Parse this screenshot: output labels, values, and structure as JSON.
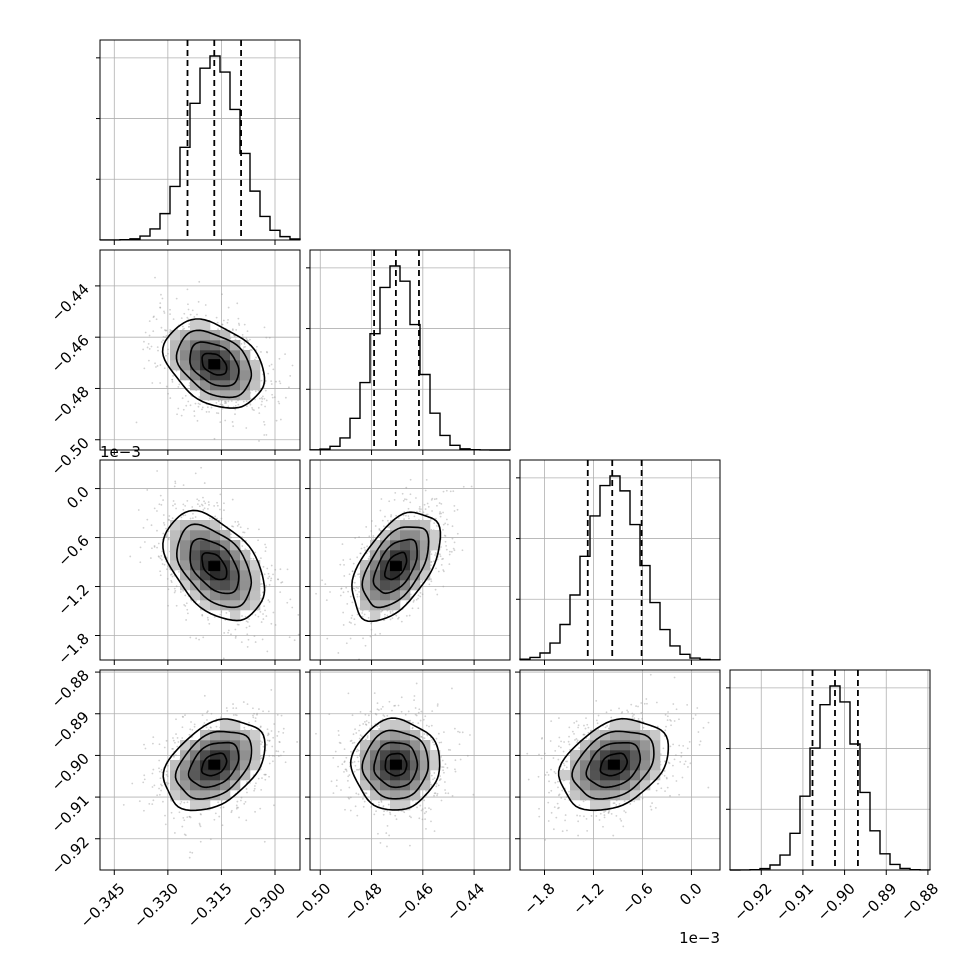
{
  "chart_data": {
    "type": "corner",
    "grid": true,
    "parameters": [
      {
        "range": [
          -0.349,
          -0.293
        ],
        "ticks": [
          -0.345,
          -0.33,
          -0.315,
          -0.3
        ],
        "tick_labels": [
          "−0.345",
          "−0.330",
          "−0.315",
          "−0.300"
        ],
        "offset_text": "",
        "quantiles": [
          -0.3245,
          -0.317,
          -0.3095
        ],
        "mean": -0.317,
        "sd": 0.007
      },
      {
        "range": [
          -0.504,
          -0.426
        ],
        "ticks": [
          -0.5,
          -0.48,
          -0.46,
          -0.44
        ],
        "tick_labels": [
          "−0.50",
          "−0.48",
          "−0.46",
          "−0.44"
        ],
        "offset_text": "",
        "quantiles": [
          -0.479,
          -0.4705,
          -0.4615
        ],
        "mean": -0.4705,
        "sd": 0.0085
      },
      {
        "range": [
          -0.0021,
          0.00035
        ],
        "ticks": [
          -0.0018,
          -0.0012,
          -0.0006,
          0.0
        ],
        "tick_labels": [
          "−1.8",
          "−1.2",
          "−0.6",
          "0.0"
        ],
        "offset_text": "1e−3",
        "quantiles": [
          -0.00127,
          -0.00097,
          -0.00061
        ],
        "mean": -0.00095,
        "sd": 0.00033
      },
      {
        "range": [
          -0.9275,
          -0.8795
        ],
        "ticks": [
          -0.92,
          -0.91,
          -0.9,
          -0.89,
          -0.88
        ],
        "tick_labels": [
          "−0.92",
          "−0.91",
          "−0.90",
          "−0.89",
          "−0.88"
        ],
        "offset_text": "",
        "quantiles": [
          -0.9077,
          -0.9023,
          -0.8968
        ],
        "mean": -0.9022,
        "sd": 0.0054
      }
    ],
    "correlations": {
      "1-0": -0.35,
      "2-0": -0.45,
      "2-1": 0.5,
      "3-0": 0.35,
      "3-1": 0.0,
      "3-2": 0.3
    }
  }
}
